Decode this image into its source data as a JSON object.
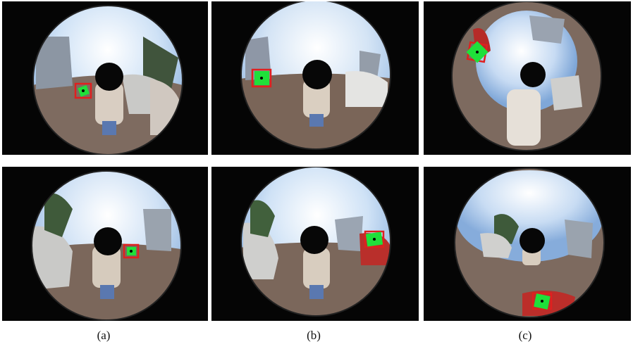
{
  "figure": {
    "captions": [
      "(a)",
      "(b)",
      "(c)"
    ]
  },
  "panels": [
    {
      "id": "a-top",
      "column": "a",
      "row": "top"
    },
    {
      "id": "b-top",
      "column": "b",
      "row": "top"
    },
    {
      "id": "c-top",
      "column": "c",
      "row": "top"
    },
    {
      "id": "a-bottom",
      "column": "a",
      "row": "bottom"
    },
    {
      "id": "b-bottom",
      "column": "b",
      "row": "bottom"
    },
    {
      "id": "c-bottom",
      "column": "c",
      "row": "bottom"
    }
  ],
  "colors": {
    "sky": "#bcd6f0",
    "ground": "#7a6a5e",
    "tracker_box": "#1fe03a",
    "ground_truth_box": "#e0201f",
    "occlusion": "#070707"
  }
}
